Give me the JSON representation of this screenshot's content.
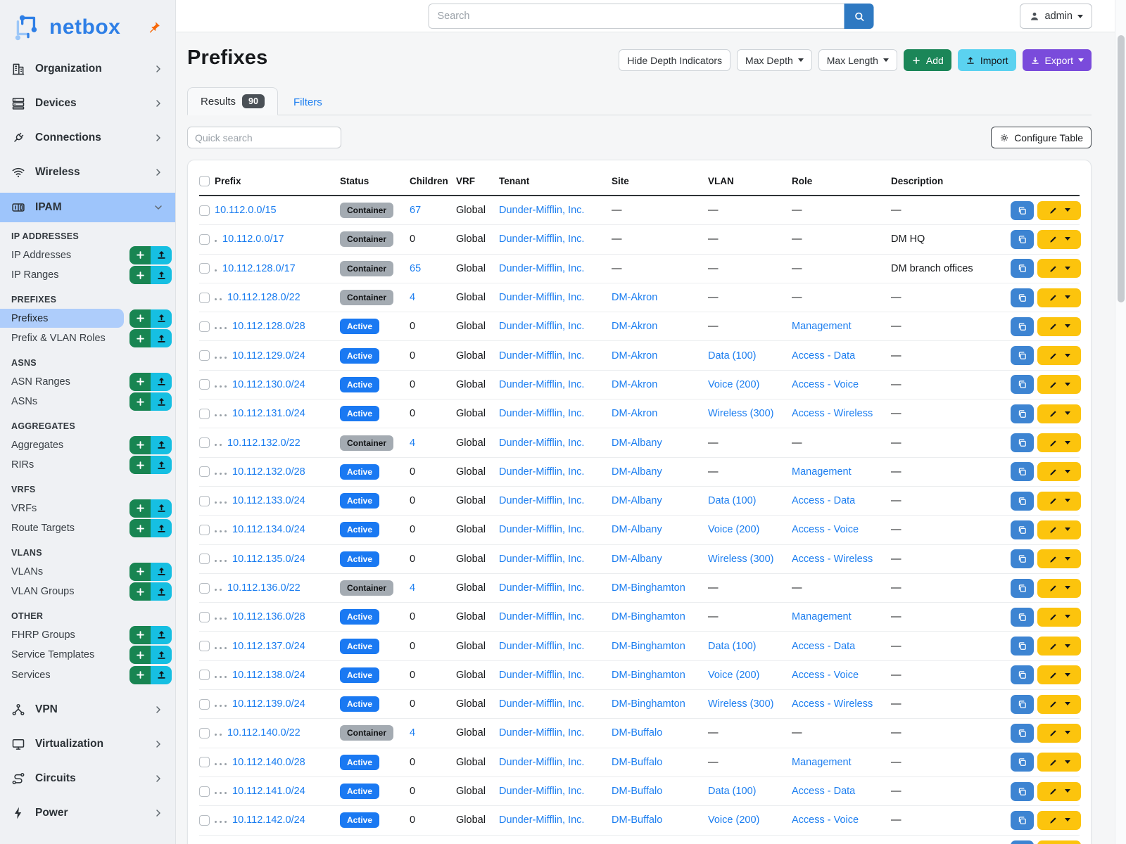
{
  "colors": {
    "brand_blue": "#2e7fe6",
    "link_blue": "#1c7ef0",
    "active_badge_blue": "#1a79f2",
    "container_badge_gray": "#a4abb2",
    "add_green": "#1b8658",
    "import_cyan": "#5bd2f0",
    "export_purple": "#7a4bdb",
    "edit_yellow": "#fcc40d",
    "copy_blue": "#3d84d2",
    "sidebar_add_green": "#188552",
    "sidebar_import_cyan": "#16bfe2",
    "nav_active_bg": "#9ec5fb",
    "subnav_selected_bg": "#aecdfb",
    "pin_orange": "#f76707"
  },
  "topbar": {
    "search_placeholder": "Search",
    "user": "admin"
  },
  "sidebar": {
    "brand": "netbox",
    "top_items": [
      {
        "label": "Organization",
        "icon": "building-icon"
      },
      {
        "label": "Devices",
        "icon": "server-icon"
      },
      {
        "label": "Connections",
        "icon": "plug-icon"
      },
      {
        "label": "Wireless",
        "icon": "wifi-icon"
      }
    ],
    "active_item": {
      "label": "IPAM",
      "icon": "counter-icon"
    },
    "sections": [
      {
        "title": "IP ADDRESSES",
        "items": [
          {
            "label": "IP Addresses"
          },
          {
            "label": "IP Ranges"
          }
        ]
      },
      {
        "title": "PREFIXES",
        "items": [
          {
            "label": "Prefixes",
            "selected": true
          },
          {
            "label": "Prefix & VLAN Roles"
          }
        ]
      },
      {
        "title": "ASNS",
        "items": [
          {
            "label": "ASN Ranges"
          },
          {
            "label": "ASNs"
          }
        ]
      },
      {
        "title": "AGGREGATES",
        "items": [
          {
            "label": "Aggregates"
          },
          {
            "label": "RIRs"
          }
        ]
      },
      {
        "title": "VRFS",
        "items": [
          {
            "label": "VRFs"
          },
          {
            "label": "Route Targets"
          }
        ]
      },
      {
        "title": "VLANS",
        "items": [
          {
            "label": "VLANs"
          },
          {
            "label": "VLAN Groups"
          }
        ]
      },
      {
        "title": "OTHER",
        "items": [
          {
            "label": "FHRP Groups"
          },
          {
            "label": "Service Templates"
          },
          {
            "label": "Services"
          }
        ]
      }
    ],
    "bottom_items": [
      {
        "label": "VPN",
        "icon": "network-icon"
      },
      {
        "label": "Virtualization",
        "icon": "monitor-icon"
      },
      {
        "label": "Circuits",
        "icon": "route-icon"
      },
      {
        "label": "Power",
        "icon": "bolt-icon"
      }
    ]
  },
  "page": {
    "title": "Prefixes",
    "toolbar": {
      "hide_depth": "Hide Depth Indicators",
      "max_depth": "Max Depth",
      "max_length": "Max Length",
      "add": "Add",
      "import": "Import",
      "export": "Export"
    },
    "tabs": {
      "results": "Results",
      "results_count": "90",
      "filters": "Filters"
    },
    "quick_search_placeholder": "Quick search",
    "configure_table": "Configure Table"
  },
  "table": {
    "columns": [
      "Prefix",
      "Status",
      "Children",
      "VRF",
      "Tenant",
      "Site",
      "VLAN",
      "Role",
      "Description"
    ],
    "rows": [
      {
        "depth": 0,
        "prefix": "10.112.0.0/15",
        "status": "Container",
        "children": "67",
        "children_link": true,
        "vrf": "Global",
        "tenant": "Dunder-Mifflin, Inc.",
        "site": "—",
        "vlan": "—",
        "role": "—",
        "description": "—"
      },
      {
        "depth": 1,
        "prefix": "10.112.0.0/17",
        "status": "Container",
        "children": "0",
        "children_link": false,
        "vrf": "Global",
        "tenant": "Dunder-Mifflin, Inc.",
        "site": "—",
        "vlan": "—",
        "role": "—",
        "description": "DM HQ"
      },
      {
        "depth": 1,
        "prefix": "10.112.128.0/17",
        "status": "Container",
        "children": "65",
        "children_link": true,
        "vrf": "Global",
        "tenant": "Dunder-Mifflin, Inc.",
        "site": "—",
        "vlan": "—",
        "role": "—",
        "description": "DM branch offices"
      },
      {
        "depth": 2,
        "prefix": "10.112.128.0/22",
        "status": "Container",
        "children": "4",
        "children_link": true,
        "vrf": "Global",
        "tenant": "Dunder-Mifflin, Inc.",
        "site": "DM-Akron",
        "vlan": "—",
        "role": "—",
        "description": "—"
      },
      {
        "depth": 3,
        "prefix": "10.112.128.0/28",
        "status": "Active",
        "children": "0",
        "children_link": false,
        "vrf": "Global",
        "tenant": "Dunder-Mifflin, Inc.",
        "site": "DM-Akron",
        "vlan": "—",
        "role": "Management",
        "description": "—"
      },
      {
        "depth": 3,
        "prefix": "10.112.129.0/24",
        "status": "Active",
        "children": "0",
        "children_link": false,
        "vrf": "Global",
        "tenant": "Dunder-Mifflin, Inc.",
        "site": "DM-Akron",
        "vlan": "Data (100)",
        "role": "Access - Data",
        "description": "—"
      },
      {
        "depth": 3,
        "prefix": "10.112.130.0/24",
        "status": "Active",
        "children": "0",
        "children_link": false,
        "vrf": "Global",
        "tenant": "Dunder-Mifflin, Inc.",
        "site": "DM-Akron",
        "vlan": "Voice (200)",
        "role": "Access - Voice",
        "description": "—"
      },
      {
        "depth": 3,
        "prefix": "10.112.131.0/24",
        "status": "Active",
        "children": "0",
        "children_link": false,
        "vrf": "Global",
        "tenant": "Dunder-Mifflin, Inc.",
        "site": "DM-Akron",
        "vlan": "Wireless (300)",
        "role": "Access - Wireless",
        "description": "—"
      },
      {
        "depth": 2,
        "prefix": "10.112.132.0/22",
        "status": "Container",
        "children": "4",
        "children_link": true,
        "vrf": "Global",
        "tenant": "Dunder-Mifflin, Inc.",
        "site": "DM-Albany",
        "vlan": "—",
        "role": "—",
        "description": "—"
      },
      {
        "depth": 3,
        "prefix": "10.112.132.0/28",
        "status": "Active",
        "children": "0",
        "children_link": false,
        "vrf": "Global",
        "tenant": "Dunder-Mifflin, Inc.",
        "site": "DM-Albany",
        "vlan": "—",
        "role": "Management",
        "description": "—"
      },
      {
        "depth": 3,
        "prefix": "10.112.133.0/24",
        "status": "Active",
        "children": "0",
        "children_link": false,
        "vrf": "Global",
        "tenant": "Dunder-Mifflin, Inc.",
        "site": "DM-Albany",
        "vlan": "Data (100)",
        "role": "Access - Data",
        "description": "—"
      },
      {
        "depth": 3,
        "prefix": "10.112.134.0/24",
        "status": "Active",
        "children": "0",
        "children_link": false,
        "vrf": "Global",
        "tenant": "Dunder-Mifflin, Inc.",
        "site": "DM-Albany",
        "vlan": "Voice (200)",
        "role": "Access - Voice",
        "description": "—"
      },
      {
        "depth": 3,
        "prefix": "10.112.135.0/24",
        "status": "Active",
        "children": "0",
        "children_link": false,
        "vrf": "Global",
        "tenant": "Dunder-Mifflin, Inc.",
        "site": "DM-Albany",
        "vlan": "Wireless (300)",
        "role": "Access - Wireless",
        "description": "—"
      },
      {
        "depth": 2,
        "prefix": "10.112.136.0/22",
        "status": "Container",
        "children": "4",
        "children_link": true,
        "vrf": "Global",
        "tenant": "Dunder-Mifflin, Inc.",
        "site": "DM-Binghamton",
        "vlan": "—",
        "role": "—",
        "description": "—"
      },
      {
        "depth": 3,
        "prefix": "10.112.136.0/28",
        "status": "Active",
        "children": "0",
        "children_link": false,
        "vrf": "Global",
        "tenant": "Dunder-Mifflin, Inc.",
        "site": "DM-Binghamton",
        "vlan": "—",
        "role": "Management",
        "description": "—"
      },
      {
        "depth": 3,
        "prefix": "10.112.137.0/24",
        "status": "Active",
        "children": "0",
        "children_link": false,
        "vrf": "Global",
        "tenant": "Dunder-Mifflin, Inc.",
        "site": "DM-Binghamton",
        "vlan": "Data (100)",
        "role": "Access - Data",
        "description": "—"
      },
      {
        "depth": 3,
        "prefix": "10.112.138.0/24",
        "status": "Active",
        "children": "0",
        "children_link": false,
        "vrf": "Global",
        "tenant": "Dunder-Mifflin, Inc.",
        "site": "DM-Binghamton",
        "vlan": "Voice (200)",
        "role": "Access - Voice",
        "description": "—"
      },
      {
        "depth": 3,
        "prefix": "10.112.139.0/24",
        "status": "Active",
        "children": "0",
        "children_link": false,
        "vrf": "Global",
        "tenant": "Dunder-Mifflin, Inc.",
        "site": "DM-Binghamton",
        "vlan": "Wireless (300)",
        "role": "Access - Wireless",
        "description": "—"
      },
      {
        "depth": 2,
        "prefix": "10.112.140.0/22",
        "status": "Container",
        "children": "4",
        "children_link": true,
        "vrf": "Global",
        "tenant": "Dunder-Mifflin, Inc.",
        "site": "DM-Buffalo",
        "vlan": "—",
        "role": "—",
        "description": "—"
      },
      {
        "depth": 3,
        "prefix": "10.112.140.0/28",
        "status": "Active",
        "children": "0",
        "children_link": false,
        "vrf": "Global",
        "tenant": "Dunder-Mifflin, Inc.",
        "site": "DM-Buffalo",
        "vlan": "—",
        "role": "Management",
        "description": "—"
      },
      {
        "depth": 3,
        "prefix": "10.112.141.0/24",
        "status": "Active",
        "children": "0",
        "children_link": false,
        "vrf": "Global",
        "tenant": "Dunder-Mifflin, Inc.",
        "site": "DM-Buffalo",
        "vlan": "Data (100)",
        "role": "Access - Data",
        "description": "—"
      },
      {
        "depth": 3,
        "prefix": "10.112.142.0/24",
        "status": "Active",
        "children": "0",
        "children_link": false,
        "vrf": "Global",
        "tenant": "Dunder-Mifflin, Inc.",
        "site": "DM-Buffalo",
        "vlan": "Voice (200)",
        "role": "Access - Voice",
        "description": "—"
      }
    ],
    "partial_bottom_row": true
  }
}
